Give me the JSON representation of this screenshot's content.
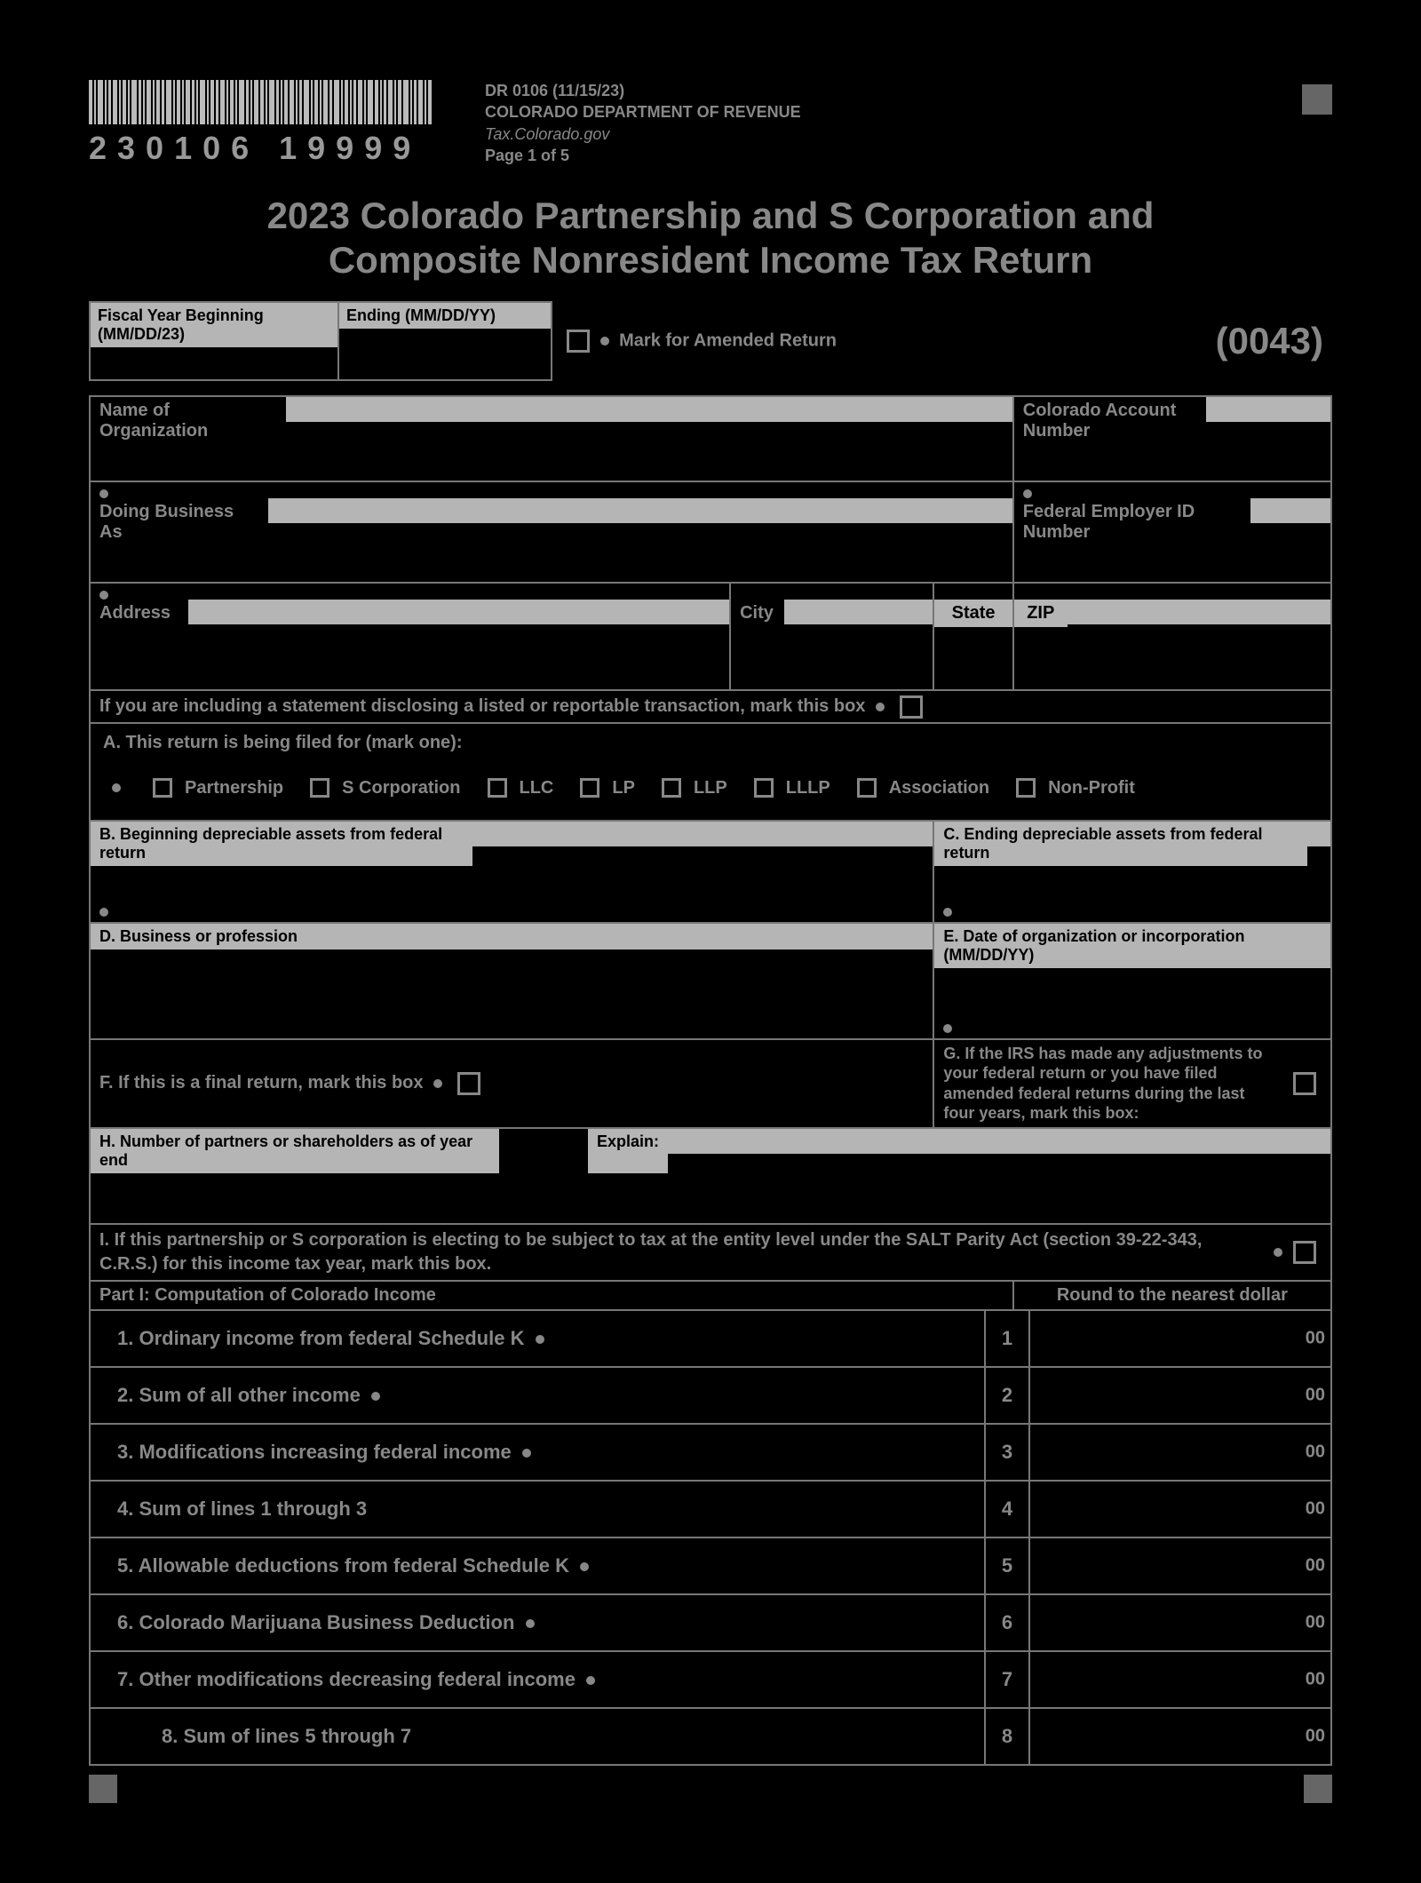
{
  "header": {
    "form_code": "DR 0106 (11/15/23)",
    "dept": "COLORADO DEPARTMENT OF REVENUE",
    "site": "Tax.Colorado.gov",
    "page": "Page 1 of 5",
    "barcode_num": "230106  19999",
    "title_line1": "2023 Colorado Partnership and S Corporation and",
    "title_line2": "Composite Nonresident Income Tax Return",
    "form_num": "(0043)"
  },
  "fiscal": {
    "begin_label": "Fiscal Year Beginning (MM/DD/23)",
    "end_label": "Ending (MM/DD/YY)",
    "amended_label": "Mark for Amended Return"
  },
  "org": {
    "name_label": "Name of Organization",
    "acct_label": "Colorado Account Number",
    "dba_label": "Doing Business As",
    "fein_label": "Federal Employer ID Number",
    "addr_label": "Address",
    "city_label": "City",
    "state_label": "State",
    "zip_label": "ZIP"
  },
  "questions": {
    "listed_trans": "If you are including a statement disclosing a listed or reportable transaction, mark this box",
    "A_label": "A. This return is being filed for (mark one):",
    "entity_types": [
      "Partnership",
      "S Corporation",
      "LLC",
      "LP",
      "LLP",
      "LLLP",
      "Association",
      "Non-Profit"
    ],
    "B_label": "B. Beginning depreciable assets from federal return",
    "C_label": "C. Ending depreciable assets from federal return",
    "D_label": "D. Business or profession",
    "E_label": "E. Date of organization or incorporation (MM/DD/YY)",
    "F_label": "F.  If this is a final return, mark this box",
    "G_label": "G. If the IRS has made any adjustments to your federal return or you have filed amended federal returns during the last four years, mark this box:",
    "H_label": "H. Number of partners or shareholders as of year end",
    "explain_label": "Explain:",
    "I_label": "I.  If this partnership or S corporation is electing to be subject to tax at the entity level under the SALT Parity Act (section 39-22-343, C.R.S.) for this income tax year, mark this box."
  },
  "part1": {
    "title": "Part I: Computation of Colorado Income",
    "round": "Round to the nearest dollar",
    "lines": [
      {
        "num": "1",
        "text": "1. Ordinary income from federal Schedule K",
        "dot": true
      },
      {
        "num": "2",
        "text": "2. Sum of all other income",
        "dot": true
      },
      {
        "num": "3",
        "text": "3. Modifications increasing federal income",
        "dot": true
      },
      {
        "num": "4",
        "text": "4. Sum of lines 1 through 3",
        "dot": false
      },
      {
        "num": "5",
        "text": "5. Allowable deductions from federal Schedule K",
        "dot": true
      },
      {
        "num": "6",
        "text": "6. Colorado Marijuana Business Deduction",
        "dot": true
      },
      {
        "num": "7",
        "text": "7. Other modifications decreasing federal income",
        "dot": true
      },
      {
        "num": "8",
        "text": "8. Sum of lines 5 through 7",
        "dot": false
      }
    ],
    "cents": "00"
  }
}
